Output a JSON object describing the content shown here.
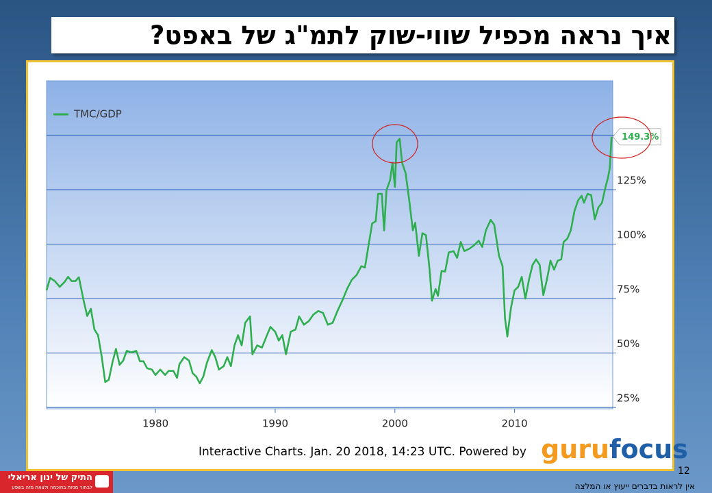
{
  "chart_data": {
    "type": "line",
    "legend_position": "upper left",
    "x": [
      1970.9,
      1971.2,
      1971.6,
      1972.0,
      1972.4,
      1972.7,
      1973.0,
      1973.3,
      1973.6,
      1974.0,
      1974.3,
      1974.6,
      1974.9,
      1975.2,
      1975.5,
      1975.8,
      1976.1,
      1976.4,
      1976.7,
      1977.0,
      1977.3,
      1977.6,
      1978.0,
      1978.4,
      1978.7,
      1979.0,
      1979.3,
      1979.7,
      1980.0,
      1980.4,
      1980.8,
      1981.1,
      1981.5,
      1981.8,
      1982.0,
      1982.4,
      1982.8,
      1983.1,
      1983.4,
      1983.7,
      1984.0,
      1984.3,
      1984.7,
      1985.0,
      1985.3,
      1985.7,
      1986.0,
      1986.3,
      1986.6,
      1986.9,
      1987.2,
      1987.5,
      1987.9,
      1988.1,
      1988.5,
      1988.9,
      1989.2,
      1989.6,
      1990.0,
      1990.3,
      1990.6,
      1990.9,
      1991.3,
      1991.7,
      1992.0,
      1992.4,
      1992.8,
      1993.2,
      1993.6,
      1994.0,
      1994.4,
      1994.8,
      1995.2,
      1995.6,
      1996.0,
      1996.4,
      1996.8,
      1997.2,
      1997.5,
      1997.8,
      1998.1,
      1998.4,
      1998.6,
      1998.9,
      1999.1,
      1999.3,
      1999.6,
      1999.8,
      2000.0,
      2000.15,
      2000.4,
      2000.6,
      2000.9,
      2001.2,
      2001.5,
      2001.7,
      2002.0,
      2002.3,
      2002.6,
      2002.9,
      2003.1,
      2003.4,
      2003.6,
      2003.9,
      2004.2,
      2004.5,
      2004.9,
      2005.2,
      2005.5,
      2005.8,
      2006.2,
      2006.6,
      2007.0,
      2007.3,
      2007.6,
      2008.0,
      2008.3,
      2008.7,
      2009.0,
      2009.2,
      2009.4,
      2009.7,
      2010.0,
      2010.3,
      2010.6,
      2010.9,
      2011.2,
      2011.5,
      2011.8,
      2012.1,
      2012.4,
      2012.7,
      2013.0,
      2013.3,
      2013.6,
      2013.9,
      2014.1,
      2014.4,
      2014.7,
      2015.0,
      2015.3,
      2015.6,
      2015.8,
      2016.1,
      2016.4,
      2016.7,
      2017.0,
      2017.3,
      2017.6,
      2017.8,
      2017.95,
      2018.1
    ],
    "series": [
      {
        "name": "TMC/GDP",
        "color": "#2eae4f",
        "values": [
          78.8,
          84.5,
          83,
          80.4,
          82.6,
          85,
          83,
          83,
          84.8,
          74,
          67,
          70.3,
          60.8,
          58.2,
          48.7,
          36.7,
          37.7,
          45.6,
          51.9,
          44.6,
          46.5,
          51,
          50.3,
          51,
          46.2,
          46.2,
          43,
          42.4,
          39.9,
          42.4,
          39.9,
          41.8,
          41.8,
          38.6,
          44.9,
          48.1,
          46.5,
          40.8,
          39.2,
          36.1,
          39.2,
          45.6,
          51.3,
          48.1,
          42.4,
          44,
          48.1,
          44,
          53.5,
          58.2,
          53.5,
          63.9,
          66.8,
          49.4,
          53.5,
          52.5,
          56.7,
          62,
          59.8,
          55.7,
          58.2,
          49.4,
          59.8,
          60.8,
          66.8,
          63,
          64.6,
          67.7,
          69.3,
          68.4,
          63,
          63.9,
          69.3,
          74,
          79.4,
          83.6,
          85.8,
          89.9,
          89.3,
          99.4,
          109.5,
          110.5,
          123.1,
          123.1,
          106.3,
          124.7,
          129.4,
          137.4,
          126.3,
          146.8,
          148.4,
          137.4,
          132.6,
          120,
          106.3,
          109.8,
          94.6,
          105,
          104.1,
          88.3,
          74,
          79.4,
          76.2,
          87.7,
          87.4,
          96.2,
          96.8,
          93.7,
          101,
          96.8,
          97.8,
          99.4,
          101.6,
          98.7,
          106.3,
          111.1,
          108.9,
          94.6,
          89.9,
          66.1,
          57.6,
          70.9,
          78.8,
          80.4,
          85,
          75,
          83.6,
          90.5,
          93,
          90.5,
          76.6,
          83.6,
          92.4,
          88.3,
          92.4,
          93,
          101,
          102.5,
          106.3,
          115.2,
          120,
          122.2,
          119,
          123.1,
          122.5,
          111.4,
          116.8,
          119,
          126.3,
          130.4,
          134.8,
          149.3
        ],
        "value_labels": [
          null,
          null,
          null,
          null,
          null,
          null,
          null,
          null,
          null,
          null,
          null,
          null,
          null,
          null,
          null,
          null,
          null,
          null,
          null,
          null,
          null,
          null,
          null,
          null,
          null,
          null,
          null,
          null,
          null,
          null,
          null,
          null,
          null,
          null,
          null,
          null,
          null,
          null,
          null,
          null,
          null,
          null,
          null,
          null,
          null,
          null,
          null,
          null,
          null,
          null,
          null,
          null,
          null,
          null,
          null,
          null,
          null,
          null,
          null,
          null,
          null,
          null,
          null,
          null,
          null,
          null,
          null,
          null,
          null,
          null,
          null,
          null,
          null,
          null,
          null,
          null,
          null,
          null,
          null,
          null,
          null,
          null,
          null,
          null,
          null,
          null,
          null,
          null,
          null,
          null,
          null,
          null,
          null,
          null,
          null,
          null,
          null,
          null,
          null,
          null,
          null,
          null,
          null,
          null,
          null,
          null,
          null,
          null,
          null,
          null,
          null,
          null,
          null,
          null,
          null,
          null,
          null,
          null,
          null,
          null,
          null,
          null,
          null,
          null,
          null,
          null,
          null,
          null,
          null,
          null,
          null,
          null,
          null,
          null,
          null,
          null,
          null,
          null,
          null,
          null,
          null,
          null,
          null,
          null,
          null,
          null,
          null,
          null,
          null,
          null,
          null,
          "149.3%"
        ]
      }
    ],
    "xlim": [
      1970.9,
      2018.2
    ],
    "xticks": [
      1980,
      1990,
      2000,
      2010
    ],
    "ylim": [
      24.4,
      175
    ],
    "yticks": [
      {
        "value": 25,
        "label": "25%"
      },
      {
        "value": 50,
        "label": "50%"
      },
      {
        "value": 75,
        "label": "75%"
      },
      {
        "value": 100,
        "label": "100%"
      },
      {
        "value": 125,
        "label": "125%"
      },
      {
        "value": 150,
        "label": null
      }
    ],
    "grid": true
  },
  "slide": {
    "title": "איך נראה מכפיל שווי-שוק לתמ\"ג של באפט?",
    "credit": "Interactive Charts. Jan. 20 2018, 14:23 UTC. Powered by",
    "brand_guru": "guru",
    "brand_focus": "focus",
    "page_number": "12",
    "disclaimer": "אין לראות בדברים ייעוץ או המלצה",
    "logo_name": "התיק של ינון אריאלי",
    "logo_tagline": "לבחור מניות בחוכמה ולצאת מזה בשפע"
  }
}
